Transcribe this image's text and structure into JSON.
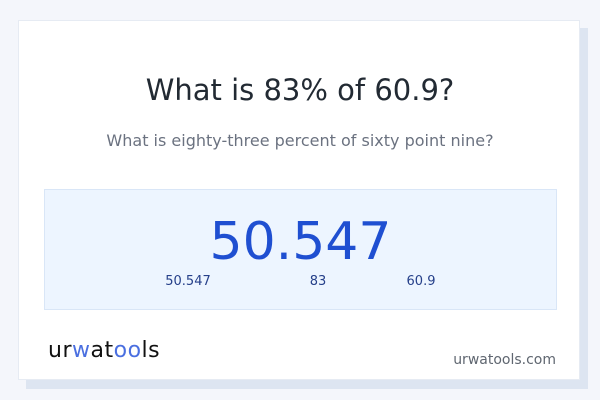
{
  "title": "What is 83% of 60.9?",
  "subtitle": "What is eighty-three percent of sixty point nine?",
  "result": {
    "value": "50.547",
    "parts": [
      "50.547",
      "83",
      "60.9"
    ]
  },
  "footer": {
    "logo_text": "urwatools",
    "site": "urwatools.com"
  },
  "colors": {
    "accent": "#1f4fd1",
    "background": "#f4f6fb",
    "result_bg": "#edf5ff"
  }
}
